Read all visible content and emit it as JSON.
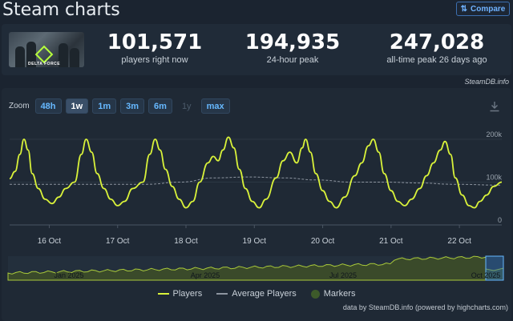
{
  "header": {
    "title": "Steam charts",
    "compare_label": "Compare"
  },
  "stats": [
    {
      "value": "101,571",
      "label": "players right now"
    },
    {
      "value": "194,935",
      "label": "24-hour peak"
    },
    {
      "value": "247,028",
      "label": "all-time peak 26 days ago"
    }
  ],
  "game_image": {
    "logo_text": "DELTA FORCE"
  },
  "credit_top": "SteamDB.info",
  "zoom": {
    "label": "Zoom",
    "buttons": [
      {
        "label": "48h",
        "state": "normal"
      },
      {
        "label": "1w",
        "state": "active"
      },
      {
        "label": "1m",
        "state": "normal"
      },
      {
        "label": "3m",
        "state": "normal"
      },
      {
        "label": "6m",
        "state": "normal"
      },
      {
        "label": "1y",
        "state": "disabled"
      },
      {
        "label": "max",
        "state": "normal"
      }
    ]
  },
  "colors": {
    "players": "#d9f23a",
    "average": "#8d95a0",
    "markers": "#3d5a2a",
    "accent": "#66b8ff"
  },
  "legend": {
    "players": "Players",
    "average": "Average Players",
    "markers": "Markers"
  },
  "footer": "data by SteamDB.info (powered by highcharts.com)",
  "chart_data": {
    "type": "line",
    "x_ticks": [
      "16 Oct",
      "17 Oct",
      "18 Oct",
      "19 Oct",
      "20 Oct",
      "21 Oct",
      "22 Oct"
    ],
    "y_ticks": [
      "0",
      "100k",
      "200k"
    ],
    "ylim": [
      0,
      230000
    ],
    "xlim": [
      0,
      7.2
    ],
    "series": [
      {
        "name": "Players",
        "points": [
          [
            0,
            108000
          ],
          [
            0.08,
            125000
          ],
          [
            0.15,
            165000
          ],
          [
            0.21,
            200000
          ],
          [
            0.27,
            175000
          ],
          [
            0.33,
            120000
          ],
          [
            0.42,
            85000
          ],
          [
            0.52,
            60000
          ],
          [
            0.62,
            50000
          ],
          [
            0.72,
            65000
          ],
          [
            0.82,
            85000
          ],
          [
            0.95,
            100000
          ],
          [
            1.05,
            165000
          ],
          [
            1.12,
            200000
          ],
          [
            1.2,
            170000
          ],
          [
            1.28,
            120000
          ],
          [
            1.38,
            85000
          ],
          [
            1.48,
            60000
          ],
          [
            1.58,
            45000
          ],
          [
            1.68,
            55000
          ],
          [
            1.8,
            85000
          ],
          [
            1.95,
            100000
          ],
          [
            2.05,
            165000
          ],
          [
            2.13,
            200000
          ],
          [
            2.2,
            175000
          ],
          [
            2.28,
            130000
          ],
          [
            2.38,
            90000
          ],
          [
            2.48,
            60000
          ],
          [
            2.58,
            40000
          ],
          [
            2.68,
            55000
          ],
          [
            2.78,
            100000
          ],
          [
            2.9,
            145000
          ],
          [
            2.98,
            160000
          ],
          [
            3.05,
            150000
          ],
          [
            3.12,
            175000
          ],
          [
            3.2,
            205000
          ],
          [
            3.28,
            180000
          ],
          [
            3.36,
            130000
          ],
          [
            3.45,
            85000
          ],
          [
            3.55,
            55000
          ],
          [
            3.65,
            40000
          ],
          [
            3.75,
            60000
          ],
          [
            3.9,
            110000
          ],
          [
            4.0,
            150000
          ],
          [
            4.1,
            170000
          ],
          [
            4.2,
            145000
          ],
          [
            4.28,
            180000
          ],
          [
            4.33,
            200000
          ],
          [
            4.4,
            170000
          ],
          [
            4.48,
            120000
          ],
          [
            4.58,
            80000
          ],
          [
            4.68,
            55000
          ],
          [
            4.78,
            40000
          ],
          [
            4.9,
            65000
          ],
          [
            5.05,
            115000
          ],
          [
            5.15,
            145000
          ],
          [
            5.25,
            185000
          ],
          [
            5.32,
            200000
          ],
          [
            5.4,
            170000
          ],
          [
            5.48,
            120000
          ],
          [
            5.58,
            80000
          ],
          [
            5.68,
            55000
          ],
          [
            5.78,
            45000
          ],
          [
            5.88,
            60000
          ],
          [
            6.0,
            85000
          ],
          [
            6.1,
            115000
          ],
          [
            6.2,
            145000
          ],
          [
            6.3,
            175000
          ],
          [
            6.37,
            195000
          ],
          [
            6.45,
            165000
          ],
          [
            6.52,
            110000
          ],
          [
            6.62,
            70000
          ],
          [
            6.72,
            45000
          ],
          [
            6.8,
            40000
          ],
          [
            6.88,
            55000
          ],
          [
            6.98,
            70000
          ],
          [
            7.08,
            90000
          ],
          [
            7.2,
            100000
          ]
        ]
      },
      {
        "name": "Average Players",
        "points": [
          [
            0,
            95000
          ],
          [
            1.0,
            95000
          ],
          [
            2.0,
            95000
          ],
          [
            2.5,
            100000
          ],
          [
            3.0,
            110000
          ],
          [
            3.5,
            112000
          ],
          [
            4.0,
            110000
          ],
          [
            4.5,
            105000
          ],
          [
            5.0,
            100000
          ],
          [
            5.5,
            100000
          ],
          [
            6.0,
            98000
          ],
          [
            6.5,
            95000
          ],
          [
            7.2,
            93000
          ]
        ]
      }
    ]
  },
  "navigator": {
    "x_ticks": [
      "Jan 2025",
      "Apr 2025",
      "Jul 2025",
      "Oct 2025"
    ]
  }
}
